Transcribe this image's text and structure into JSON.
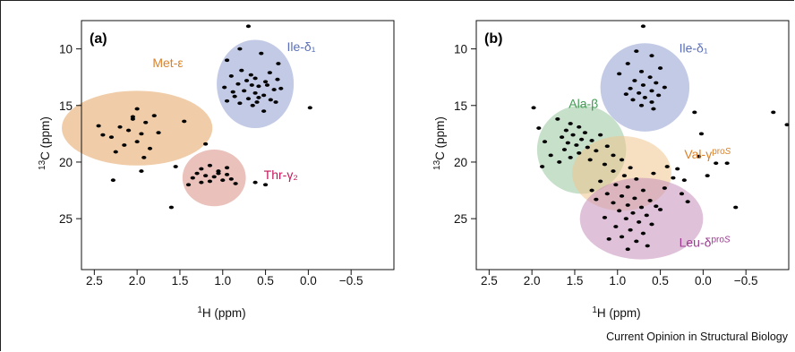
{
  "credit": "Current Opinion in Structural Biology",
  "colors": {
    "orange": "#e3a460",
    "blue": "#8f9fd2",
    "pink": "#d88e84",
    "green": "#97c69e",
    "purple": "#c48fbc",
    "tan": "#f0c590"
  },
  "chart_data": [
    {
      "type": "scatter",
      "panel": "(a)",
      "title": "",
      "xlabel": "1H (ppm)",
      "ylabel": "13C (ppm)",
      "xlim": [
        -1.0,
        2.65
      ],
      "ylim": [
        29.5,
        7.5
      ],
      "x_reversed": true,
      "y_reversed": true,
      "xticks": [
        2.5,
        2.0,
        1.5,
        1.0,
        0.5,
        0.0,
        -0.5
      ],
      "xtick_labels": [
        "2.5",
        "2.0",
        "1.5",
        "1.0",
        "0.5",
        "0.0",
        "−0.5"
      ],
      "yticks": [
        10,
        15,
        20,
        25
      ],
      "ytick_labels": [
        "10",
        "15",
        "20",
        "25"
      ],
      "regions": [
        {
          "label": "Met-ε",
          "cx": 2.0,
          "cy": 17.0,
          "rx": 0.88,
          "ry": 3.3,
          "color": "orange",
          "label_x": 1.82,
          "label_y": 11.6
        },
        {
          "label": "Ile-δ₁",
          "cx": 0.62,
          "cy": 13.1,
          "rx": 0.45,
          "ry": 3.9,
          "color": "blue",
          "label_x": 0.25,
          "label_y": 10.2
        },
        {
          "label": "Thr-γ₂",
          "cx": 1.1,
          "cy": 21.4,
          "rx": 0.37,
          "ry": 2.5,
          "color": "pink",
          "label_x": 0.52,
          "label_y": 21.5
        }
      ],
      "points": [
        [
          0.7,
          8.0
        ],
        [
          0.8,
          10.0
        ],
        [
          0.55,
          10.4
        ],
        [
          0.95,
          11.0
        ],
        [
          0.35,
          11.3
        ],
        [
          0.78,
          11.9
        ],
        [
          0.45,
          12.1
        ],
        [
          0.9,
          12.4
        ],
        [
          0.62,
          12.6
        ],
        [
          0.72,
          12.8
        ],
        [
          0.5,
          12.9
        ],
        [
          0.82,
          13.1
        ],
        [
          0.66,
          13.2
        ],
        [
          0.58,
          13.3
        ],
        [
          0.98,
          13.4
        ],
        [
          0.4,
          13.6
        ],
        [
          0.75,
          13.7
        ],
        [
          0.62,
          13.9
        ],
        [
          0.52,
          14.1
        ],
        [
          0.86,
          14.2
        ],
        [
          0.7,
          14.4
        ],
        [
          0.44,
          14.5
        ],
        [
          0.6,
          14.7
        ],
        [
          0.8,
          14.8
        ],
        [
          0.65,
          15.0
        ],
        [
          -0.02,
          15.2
        ],
        [
          0.32,
          13.5
        ],
        [
          0.95,
          14.6
        ],
        [
          0.52,
          15.5
        ],
        [
          0.38,
          14.7
        ],
        [
          0.88,
          13.8
        ],
        [
          0.48,
          13.2
        ],
        [
          0.67,
          12.3
        ],
        [
          0.58,
          14.3
        ],
        [
          0.36,
          12.7
        ],
        [
          2.0,
          15.3
        ],
        [
          1.8,
          15.9
        ],
        [
          2.05,
          16.2
        ],
        [
          1.9,
          16.5
        ],
        [
          2.2,
          16.9
        ],
        [
          2.1,
          17.2
        ],
        [
          1.95,
          17.5
        ],
        [
          2.3,
          17.8
        ],
        [
          2.0,
          18.2
        ],
        [
          2.15,
          18.5
        ],
        [
          1.85,
          18.8
        ],
        [
          2.4,
          17.6
        ],
        [
          1.75,
          17.4
        ],
        [
          1.45,
          16.4
        ],
        [
          2.25,
          19.1
        ],
        [
          1.92,
          19.6
        ],
        [
          1.2,
          18.4
        ],
        [
          2.45,
          16.8
        ],
        [
          2.05,
          16.0
        ],
        [
          1.15,
          20.3
        ],
        [
          1.25,
          20.6
        ],
        [
          1.05,
          20.8
        ],
        [
          1.3,
          21.0
        ],
        [
          0.95,
          21.1
        ],
        [
          1.2,
          21.2
        ],
        [
          1.1,
          21.3
        ],
        [
          1.35,
          21.4
        ],
        [
          0.9,
          21.5
        ],
        [
          1.0,
          21.6
        ],
        [
          1.15,
          21.7
        ],
        [
          1.25,
          21.8
        ],
        [
          0.85,
          21.9
        ],
        [
          1.4,
          22.0
        ],
        [
          1.05,
          21.0
        ],
        [
          0.95,
          20.5
        ],
        [
          1.55,
          20.4
        ],
        [
          0.62,
          21.8
        ],
        [
          0.5,
          22.0
        ],
        [
          1.95,
          20.8
        ],
        [
          2.28,
          21.6
        ],
        [
          1.6,
          24.0
        ]
      ]
    },
    {
      "type": "scatter",
      "panel": "(b)",
      "title": "",
      "xlabel": "1H (ppm)",
      "ylabel": "13C (ppm)",
      "xlim": [
        -1.0,
        2.65
      ],
      "ylim": [
        29.5,
        7.5
      ],
      "x_reversed": true,
      "y_reversed": true,
      "xticks": [
        2.5,
        2.0,
        1.5,
        1.0,
        0.5,
        0.0,
        -0.5
      ],
      "xtick_labels": [
        "2.5",
        "2.0",
        "1.5",
        "1.0",
        "0.5",
        "0.0",
        "−0.5"
      ],
      "yticks": [
        10,
        15,
        20,
        25
      ],
      "ytick_labels": [
        "10",
        "15",
        "20",
        "25"
      ],
      "regions": [
        {
          "label": "Ile-δ₁",
          "cx": 0.68,
          "cy": 13.4,
          "rx": 0.52,
          "ry": 3.9,
          "color": "blue",
          "label_x": 0.28,
          "label_y": 10.3
        },
        {
          "label": "Ala-β",
          "cx": 1.42,
          "cy": 18.9,
          "rx": 0.52,
          "ry": 3.9,
          "color": "green",
          "label_x": 1.57,
          "label_y": 15.2
        },
        {
          "label": "Val-γproS",
          "cx": 0.95,
          "cy": 21.0,
          "rx": 0.58,
          "ry": 3.3,
          "color": "tan",
          "label_x": 0.22,
          "label_y": 19.7
        },
        {
          "label": "Leu-δproS",
          "cx": 0.72,
          "cy": 25.0,
          "rx": 0.72,
          "ry": 3.6,
          "color": "purple",
          "label_x": 0.28,
          "label_y": 27.5
        }
      ],
      "points": [
        [
          0.7,
          8.0
        ],
        [
          0.78,
          10.2
        ],
        [
          0.6,
          10.6
        ],
        [
          0.88,
          11.3
        ],
        [
          0.5,
          11.7
        ],
        [
          0.72,
          12.0
        ],
        [
          0.62,
          12.5
        ],
        [
          0.8,
          12.8
        ],
        [
          0.55,
          13.0
        ],
        [
          0.7,
          13.2
        ],
        [
          0.85,
          13.5
        ],
        [
          0.6,
          13.7
        ],
        [
          0.75,
          13.9
        ],
        [
          0.52,
          14.1
        ],
        [
          0.68,
          14.3
        ],
        [
          0.82,
          14.5
        ],
        [
          0.6,
          14.7
        ],
        [
          0.72,
          15.0
        ],
        [
          0.58,
          15.3
        ],
        [
          0.9,
          14.0
        ],
        [
          0.45,
          13.4
        ],
        [
          0.98,
          12.2
        ],
        [
          1.7,
          16.2
        ],
        [
          1.55,
          16.6
        ],
        [
          1.45,
          16.9
        ],
        [
          1.6,
          17.2
        ],
        [
          1.38,
          17.4
        ],
        [
          1.52,
          17.6
        ],
        [
          1.65,
          17.8
        ],
        [
          1.42,
          18.0
        ],
        [
          1.3,
          18.1
        ],
        [
          1.58,
          18.3
        ],
        [
          1.48,
          18.5
        ],
        [
          1.35,
          18.7
        ],
        [
          1.62,
          18.9
        ],
        [
          1.25,
          19.0
        ],
        [
          1.45,
          19.2
        ],
        [
          1.78,
          19.4
        ],
        [
          1.55,
          19.6
        ],
        [
          1.32,
          19.8
        ],
        [
          1.68,
          20.0
        ],
        [
          1.85,
          18.2
        ],
        [
          1.92,
          17.0
        ],
        [
          1.2,
          17.6
        ],
        [
          1.12,
          18.6
        ],
        [
          1.88,
          20.4
        ],
        [
          1.98,
          15.2
        ],
        [
          1.05,
          19.4
        ],
        [
          0.95,
          19.8
        ],
        [
          1.15,
          20.2
        ],
        [
          0.85,
          20.5
        ],
        [
          1.05,
          20.8
        ],
        [
          0.92,
          21.2
        ],
        [
          0.78,
          21.5
        ],
        [
          1.2,
          21.7
        ],
        [
          1.02,
          22.0
        ],
        [
          0.88,
          22.2
        ],
        [
          0.7,
          22.5
        ],
        [
          1.12,
          22.8
        ],
        [
          0.95,
          23.0
        ],
        [
          0.8,
          23.2
        ],
        [
          0.62,
          23.4
        ],
        [
          1.05,
          23.6
        ],
        [
          0.88,
          23.8
        ],
        [
          0.72,
          24.0
        ],
        [
          0.55,
          23.9
        ],
        [
          0.98,
          24.3
        ],
        [
          0.82,
          24.5
        ],
        [
          0.66,
          24.7
        ],
        [
          0.9,
          25.0
        ],
        [
          0.75,
          25.3
        ],
        [
          0.6,
          25.5
        ],
        [
          1.02,
          25.7
        ],
        [
          0.85,
          26.0
        ],
        [
          0.7,
          26.3
        ],
        [
          0.95,
          26.6
        ],
        [
          0.78,
          27.0
        ],
        [
          0.65,
          27.4
        ],
        [
          0.88,
          27.7
        ],
        [
          1.15,
          24.9
        ],
        [
          0.5,
          24.2
        ],
        [
          1.25,
          23.3
        ],
        [
          0.45,
          22.3
        ],
        [
          0.35,
          21.4
        ],
        [
          0.58,
          21.0
        ],
        [
          0.42,
          20.4
        ],
        [
          1.3,
          22.5
        ],
        [
          1.1,
          26.8
        ],
        [
          0.1,
          15.6
        ],
        [
          0.02,
          17.5
        ],
        [
          -0.82,
          15.6
        ],
        [
          -0.98,
          16.7
        ],
        [
          0.05,
          19.5
        ],
        [
          -0.15,
          20.1
        ],
        [
          -0.28,
          20.1
        ],
        [
          -0.05,
          21.2
        ],
        [
          0.25,
          22.8
        ],
        [
          0.18,
          23.5
        ],
        [
          -0.38,
          24.0
        ],
        [
          0.3,
          20.6
        ],
        [
          0.22,
          21.6
        ]
      ]
    }
  ]
}
